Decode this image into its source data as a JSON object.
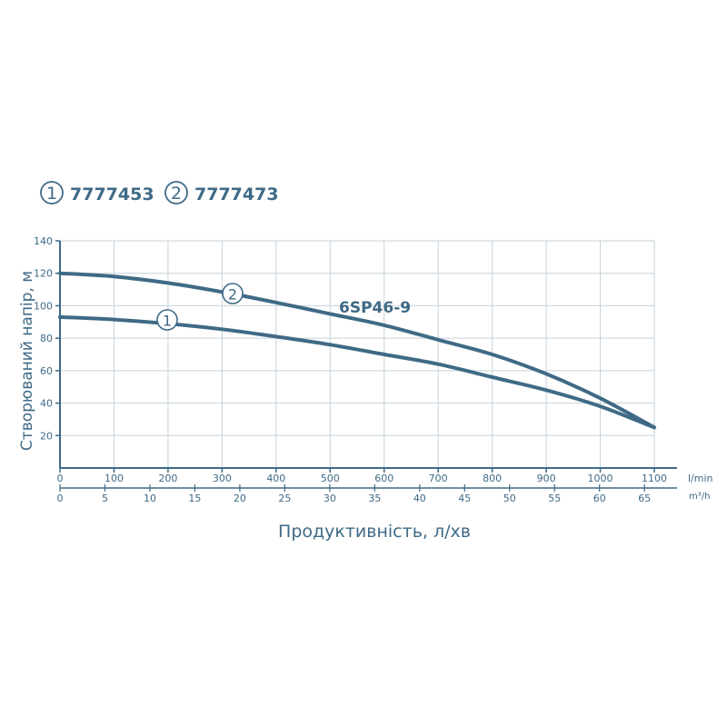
{
  "legend": [
    {
      "number": "1",
      "code": "7777453"
    },
    {
      "number": "2",
      "code": "7777473"
    }
  ],
  "chart_data": {
    "type": "line",
    "model_label": "6SP46-9",
    "ylabel": "Створюваний напір, м",
    "xlabel": "Продуктивність, л/хв",
    "x_unit_primary": "l/min",
    "x_unit_secondary": "m³/h",
    "xlim": [
      0,
      1100
    ],
    "ylim": [
      0,
      140
    ],
    "x_ticks": [
      0,
      100,
      200,
      300,
      400,
      500,
      600,
      700,
      800,
      900,
      1000,
      1100
    ],
    "y_ticks": [
      20,
      40,
      60,
      80,
      100,
      120,
      140
    ],
    "x2_ticks": [
      0,
      5,
      10,
      15,
      20,
      25,
      30,
      35,
      40,
      45,
      50,
      55,
      60,
      65
    ],
    "grid": true,
    "series": [
      {
        "name": "1",
        "x": [
          0,
          100,
          200,
          300,
          400,
          500,
          600,
          700,
          800,
          900,
          1000,
          1100
        ],
        "y": [
          93,
          91.5,
          89,
          85.5,
          81,
          76,
          70,
          64,
          56,
          48,
          38,
          25
        ]
      },
      {
        "name": "2",
        "x": [
          0,
          100,
          200,
          300,
          400,
          500,
          600,
          700,
          800,
          900,
          1000,
          1100
        ],
        "y": [
          120,
          118,
          114,
          108.5,
          102,
          95,
          88,
          79,
          70,
          58,
          43,
          25
        ]
      }
    ]
  }
}
